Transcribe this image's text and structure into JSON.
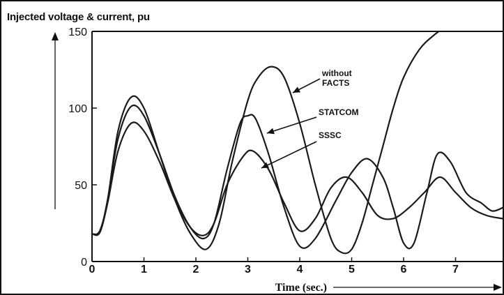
{
  "chart_data": {
    "type": "line",
    "title": "Injected voltage & current, pu",
    "xlabel": "Time (sec.)",
    "ylabel": "",
    "xlim": [
      0,
      8
    ],
    "ylim": [
      0,
      150
    ],
    "xticks": [
      "0",
      "1",
      "2",
      "3",
      "4",
      "5",
      "6",
      "7"
    ],
    "yticks": [
      "0",
      "50",
      "100",
      "150"
    ],
    "grid": false,
    "annotations": [
      {
        "text": "without FACTS",
        "lines": [
          "without",
          "FACTS"
        ],
        "series": "without FACTS"
      },
      {
        "text": "STATCOM",
        "lines": [
          "STATCOM"
        ],
        "series": "STATCOM"
      },
      {
        "text": "SSSC",
        "lines": [
          "SSSC"
        ],
        "series": "SSSC"
      }
    ],
    "series": [
      {
        "name": "without FACTS",
        "x": [
          0,
          0.15,
          0.3,
          0.5,
          0.75,
          1.0,
          1.3,
          1.6,
          1.9,
          2.2,
          2.45,
          2.7,
          3.0,
          3.2,
          3.45,
          3.7,
          4.0,
          4.3,
          4.6,
          4.8,
          5.0,
          5.2,
          5.4,
          5.6,
          5.8,
          6.0,
          6.3,
          6.6,
          6.9
        ],
        "values": [
          18,
          20,
          40,
          85,
          107,
          100,
          70,
          40,
          18,
          8,
          25,
          65,
          105,
          120,
          127,
          120,
          90,
          50,
          15,
          6,
          8,
          25,
          50,
          75,
          100,
          120,
          138,
          148,
          155
        ]
      },
      {
        "name": "STATCOM",
        "x": [
          0,
          0.15,
          0.3,
          0.5,
          0.75,
          1.0,
          1.3,
          1.6,
          1.9,
          2.15,
          2.35,
          2.6,
          2.85,
          3.0,
          3.15,
          3.4,
          3.7,
          4.0,
          4.3,
          4.7,
          5.0,
          5.3,
          5.6,
          5.8,
          6.0,
          6.2,
          6.45,
          6.65,
          6.9,
          7.2,
          7.5,
          7.7,
          7.9,
          8.0
        ],
        "values": [
          18,
          19,
          40,
          80,
          101,
          95,
          70,
          42,
          22,
          15,
          25,
          60,
          90,
          95,
          93,
          70,
          35,
          10,
          15,
          40,
          58,
          67,
          55,
          35,
          12,
          12,
          45,
          70,
          65,
          45,
          38,
          33,
          35,
          38
        ]
      },
      {
        "name": "SSSC",
        "x": [
          0,
          0.15,
          0.3,
          0.5,
          0.75,
          1.0,
          1.3,
          1.6,
          1.9,
          2.15,
          2.35,
          2.6,
          2.9,
          3.1,
          3.4,
          3.7,
          4.0,
          4.3,
          4.6,
          4.9,
          5.2,
          5.5,
          5.8,
          6.1,
          6.4,
          6.7,
          7.0,
          7.3,
          7.6,
          7.9,
          8.0
        ],
        "values": [
          18,
          19,
          38,
          72,
          90,
          85,
          65,
          40,
          22,
          17,
          25,
          50,
          68,
          72,
          60,
          38,
          20,
          28,
          48,
          55,
          45,
          30,
          28,
          35,
          45,
          55,
          45,
          35,
          30,
          28,
          27
        ]
      }
    ]
  }
}
